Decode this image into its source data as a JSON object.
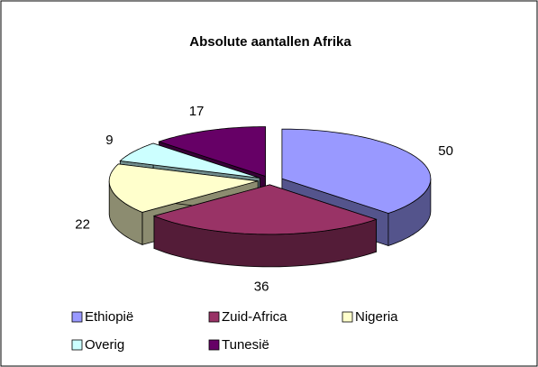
{
  "chart_data": {
    "type": "pie3d",
    "title": "Absolute aantallen Afrika",
    "categories": [
      "Ethiopië",
      "Zuid-Africa",
      "Nigeria",
      "Overig",
      "Tunesië"
    ],
    "values": [
      50,
      36,
      22,
      9,
      17
    ],
    "colors": [
      "#9999ff",
      "#993366",
      "#ffffcc",
      "#ccffff",
      "#660066"
    ],
    "legend": "bottom"
  }
}
